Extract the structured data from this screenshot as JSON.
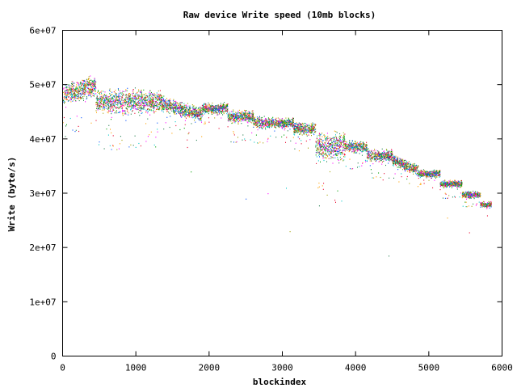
{
  "chart_data": {
    "type": "scatter",
    "title": "Raw device Write speed (10mb blocks)",
    "xlabel": "blockindex",
    "ylabel": "Write (byte/s)",
    "xlim": [
      0,
      6000
    ],
    "ylim": [
      0,
      60000000
    ],
    "xticks": [
      0,
      1000,
      2000,
      3000,
      4000,
      5000,
      6000
    ],
    "xtick_labels": [
      "0",
      "1000",
      "2000",
      "3000",
      "4000",
      "5000",
      "6000"
    ],
    "yticks": [
      0,
      10000000,
      20000000,
      30000000,
      40000000,
      50000000,
      60000000
    ],
    "ytick_labels": [
      "0",
      "1e+07",
      "2e+07",
      "3e+07",
      "4e+07",
      "5e+07",
      "6e+07"
    ],
    "grid": false,
    "legend": "none",
    "series_colors": [
      "#e8002a",
      "#00a000",
      "#0050ff",
      "#ff00ff",
      "#00c8c8",
      "#a0a000",
      "#1f7a4a",
      "#ffa000"
    ],
    "segments": [
      {
        "x": [
          0,
          450
        ],
        "y_start": 48000000,
        "y_end": 50000000,
        "spread": 2600000
      },
      {
        "x": [
          450,
          1350
        ],
        "y_start": 47000000,
        "y_end": 47000000,
        "spread": 3000000
      },
      {
        "x": [
          1350,
          1900
        ],
        "y_start": 46500000,
        "y_end": 44500000,
        "spread": 1800000
      },
      {
        "x": [
          1900,
          2250
        ],
        "y_start": 45700000,
        "y_end": 45700000,
        "spread": 1400000
      },
      {
        "x": [
          2250,
          2600
        ],
        "y_start": 44200000,
        "y_end": 44200000,
        "spread": 1600000
      },
      {
        "x": [
          2600,
          2850
        ],
        "y_start": 43200000,
        "y_end": 43000000,
        "spread": 1400000
      },
      {
        "x": [
          2850,
          3150
        ],
        "y_start": 43000000,
        "y_end": 43000000,
        "spread": 1200000
      },
      {
        "x": [
          3150,
          3450
        ],
        "y_start": 42000000,
        "y_end": 41800000,
        "spread": 1500000
      },
      {
        "x": [
          3450,
          3850
        ],
        "y_start": 38800000,
        "y_end": 38800000,
        "spread": 3800000
      },
      {
        "x": [
          3850,
          4150
        ],
        "y_start": 38800000,
        "y_end": 38500000,
        "spread": 1400000
      },
      {
        "x": [
          4150,
          4500
        ],
        "y_start": 37000000,
        "y_end": 37000000,
        "spread": 1500000
      },
      {
        "x": [
          4500,
          4850
        ],
        "y_start": 36200000,
        "y_end": 34200000,
        "spread": 1300000
      },
      {
        "x": [
          4850,
          5150
        ],
        "y_start": 33700000,
        "y_end": 33700000,
        "spread": 1000000
      },
      {
        "x": [
          5150,
          5450
        ],
        "y_start": 31800000,
        "y_end": 31800000,
        "spread": 900000
      },
      {
        "x": [
          5450,
          5700
        ],
        "y_start": 29800000,
        "y_end": 29800000,
        "spread": 800000
      },
      {
        "x": [
          5700,
          5850
        ],
        "y_start": 28000000,
        "y_end": 28000000,
        "spread": 700000
      }
    ],
    "outliers": [
      {
        "x": 1700,
        "y": 38500000
      },
      {
        "x": 1750,
        "y": 34000000
      },
      {
        "x": 2500,
        "y": 29000000
      },
      {
        "x": 2800,
        "y": 30000000
      },
      {
        "x": 3050,
        "y": 31000000
      },
      {
        "x": 3100,
        "y": 23000000
      },
      {
        "x": 4450,
        "y": 18500000
      },
      {
        "x": 5250,
        "y": 25500000
      },
      {
        "x": 5550,
        "y": 22800000
      },
      {
        "x": 3750,
        "y": 30500000
      }
    ]
  }
}
